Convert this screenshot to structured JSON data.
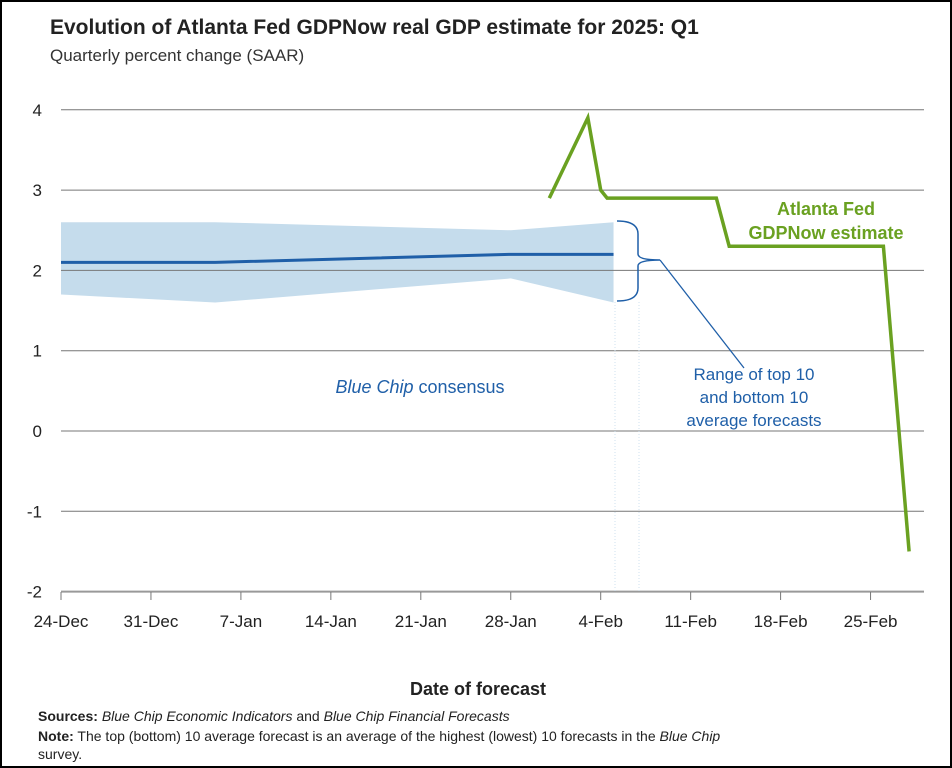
{
  "chart_data": {
    "type": "line",
    "title": "Evolution of Atlanta Fed GDPNow real GDP estimate for 2025: Q1",
    "subtitle": "Quarterly percent change (SAAR)",
    "xlabel": "Date of forecast",
    "ylabel": "",
    "ylim": [
      -2,
      4
    ],
    "yticks": [
      4,
      3,
      2,
      1,
      0,
      -1,
      -2
    ],
    "xticks": [
      {
        "day": 0,
        "label": "24-Dec"
      },
      {
        "day": 7,
        "label": "31-Dec"
      },
      {
        "day": 14,
        "label": "7-Jan"
      },
      {
        "day": 21,
        "label": "14-Jan"
      },
      {
        "day": 28,
        "label": "21-Jan"
      },
      {
        "day": 35,
        "label": "28-Jan"
      },
      {
        "day": 42,
        "label": "4-Feb"
      },
      {
        "day": 49,
        "label": "11-Feb"
      },
      {
        "day": 56,
        "label": "18-Feb"
      },
      {
        "day": 63,
        "label": "25-Feb"
      }
    ],
    "x_unit": "days since 24-Dec",
    "xlim": [
      0,
      67
    ],
    "grid": true,
    "series": [
      {
        "name": "Atlanta Fed GDPNow estimate",
        "color": "#6aa121",
        "x": [
          38,
          41,
          42,
          42.5,
          51,
          52,
          64,
          66
        ],
        "y": [
          2.9,
          3.9,
          3.0,
          2.9,
          2.9,
          2.3,
          2.3,
          -1.5
        ]
      },
      {
        "name": "Blue Chip consensus",
        "color": "#1f5fa8",
        "x": [
          0,
          12,
          35,
          43
        ],
        "y": [
          2.1,
          2.1,
          2.2,
          2.2
        ]
      }
    ],
    "range_band": {
      "name": "Range of top 10 and bottom 10 average forecasts",
      "color": "#c5dcec",
      "x": [
        0,
        12,
        35,
        43
      ],
      "top": [
        2.6,
        2.6,
        2.5,
        2.6
      ],
      "bottom": [
        1.7,
        1.6,
        1.9,
        1.6
      ]
    },
    "annotations": {
      "gdpnow": [
        "Atlanta Fed",
        "GDPNow estimate"
      ],
      "consensus_italic": "Blue Chip",
      "consensus_rest": " consensus",
      "range": [
        "Range of top 10",
        "and bottom 10",
        "average forecasts"
      ]
    }
  },
  "footer": {
    "sources_label": "Sources:",
    "sources_1": "Blue Chip Economic Indicators",
    "sources_and": " and ",
    "sources_2": "Blue Chip Financial Forecasts",
    "note_label": "Note:",
    "note_text": " The top (bottom) 10 average forecast is an average of the highest (lowest) 10 forecasts in the ",
    "note_italic": "Blue Chip",
    "note_end": "survey."
  }
}
